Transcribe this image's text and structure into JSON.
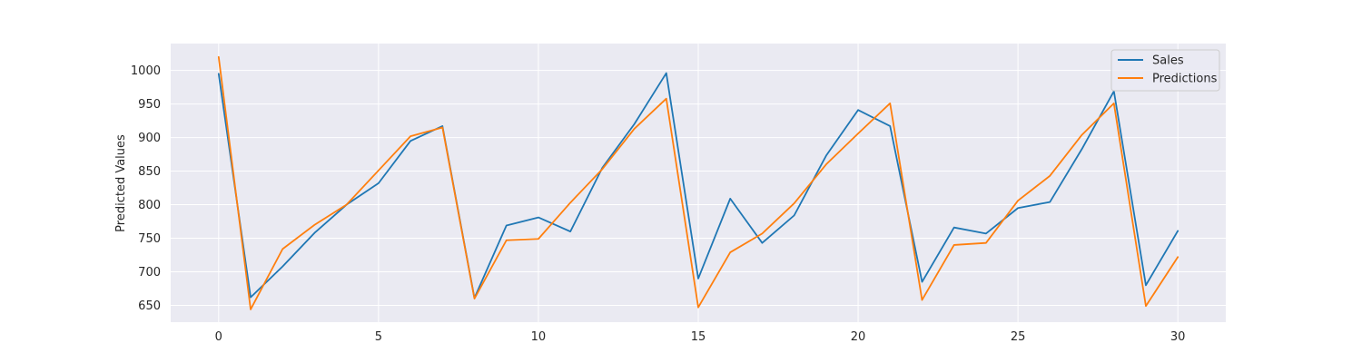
{
  "chart_data": {
    "type": "line",
    "title": "",
    "xlabel": "",
    "ylabel": "Predicted Values",
    "xlim": [
      -1.5,
      31.5
    ],
    "ylim": [
      625,
      1040
    ],
    "xticks": [
      0,
      5,
      10,
      15,
      20,
      25,
      30
    ],
    "yticks": [
      650,
      700,
      750,
      800,
      850,
      900,
      950,
      1000
    ],
    "grid": true,
    "legend": {
      "placement": "top-right"
    },
    "x": [
      0,
      1,
      2,
      3,
      4,
      5,
      6,
      7,
      8,
      9,
      10,
      11,
      12,
      13,
      14,
      15,
      16,
      17,
      18,
      19,
      20,
      21,
      22,
      23,
      24,
      25,
      26,
      27,
      28,
      29,
      30
    ],
    "series": [
      {
        "name": "Sales",
        "color": "#1f77b4",
        "values": [
          995,
          662,
          708,
          758,
          800,
          832,
          895,
          917,
          661,
          769,
          781,
          760,
          855,
          920,
          996,
          690,
          809,
          743,
          784,
          873,
          941,
          917,
          685,
          766,
          757,
          795,
          804,
          883,
          969,
          680,
          761
        ]
      },
      {
        "name": "Predictions",
        "color": "#ff7f0e",
        "values": [
          1020,
          644,
          734,
          770,
          800,
          851,
          902,
          915,
          660,
          747,
          749,
          803,
          853,
          913,
          958,
          647,
          729,
          757,
          802,
          860,
          906,
          951,
          658,
          740,
          743,
          806,
          843,
          904,
          951,
          649,
          722
        ]
      }
    ]
  }
}
